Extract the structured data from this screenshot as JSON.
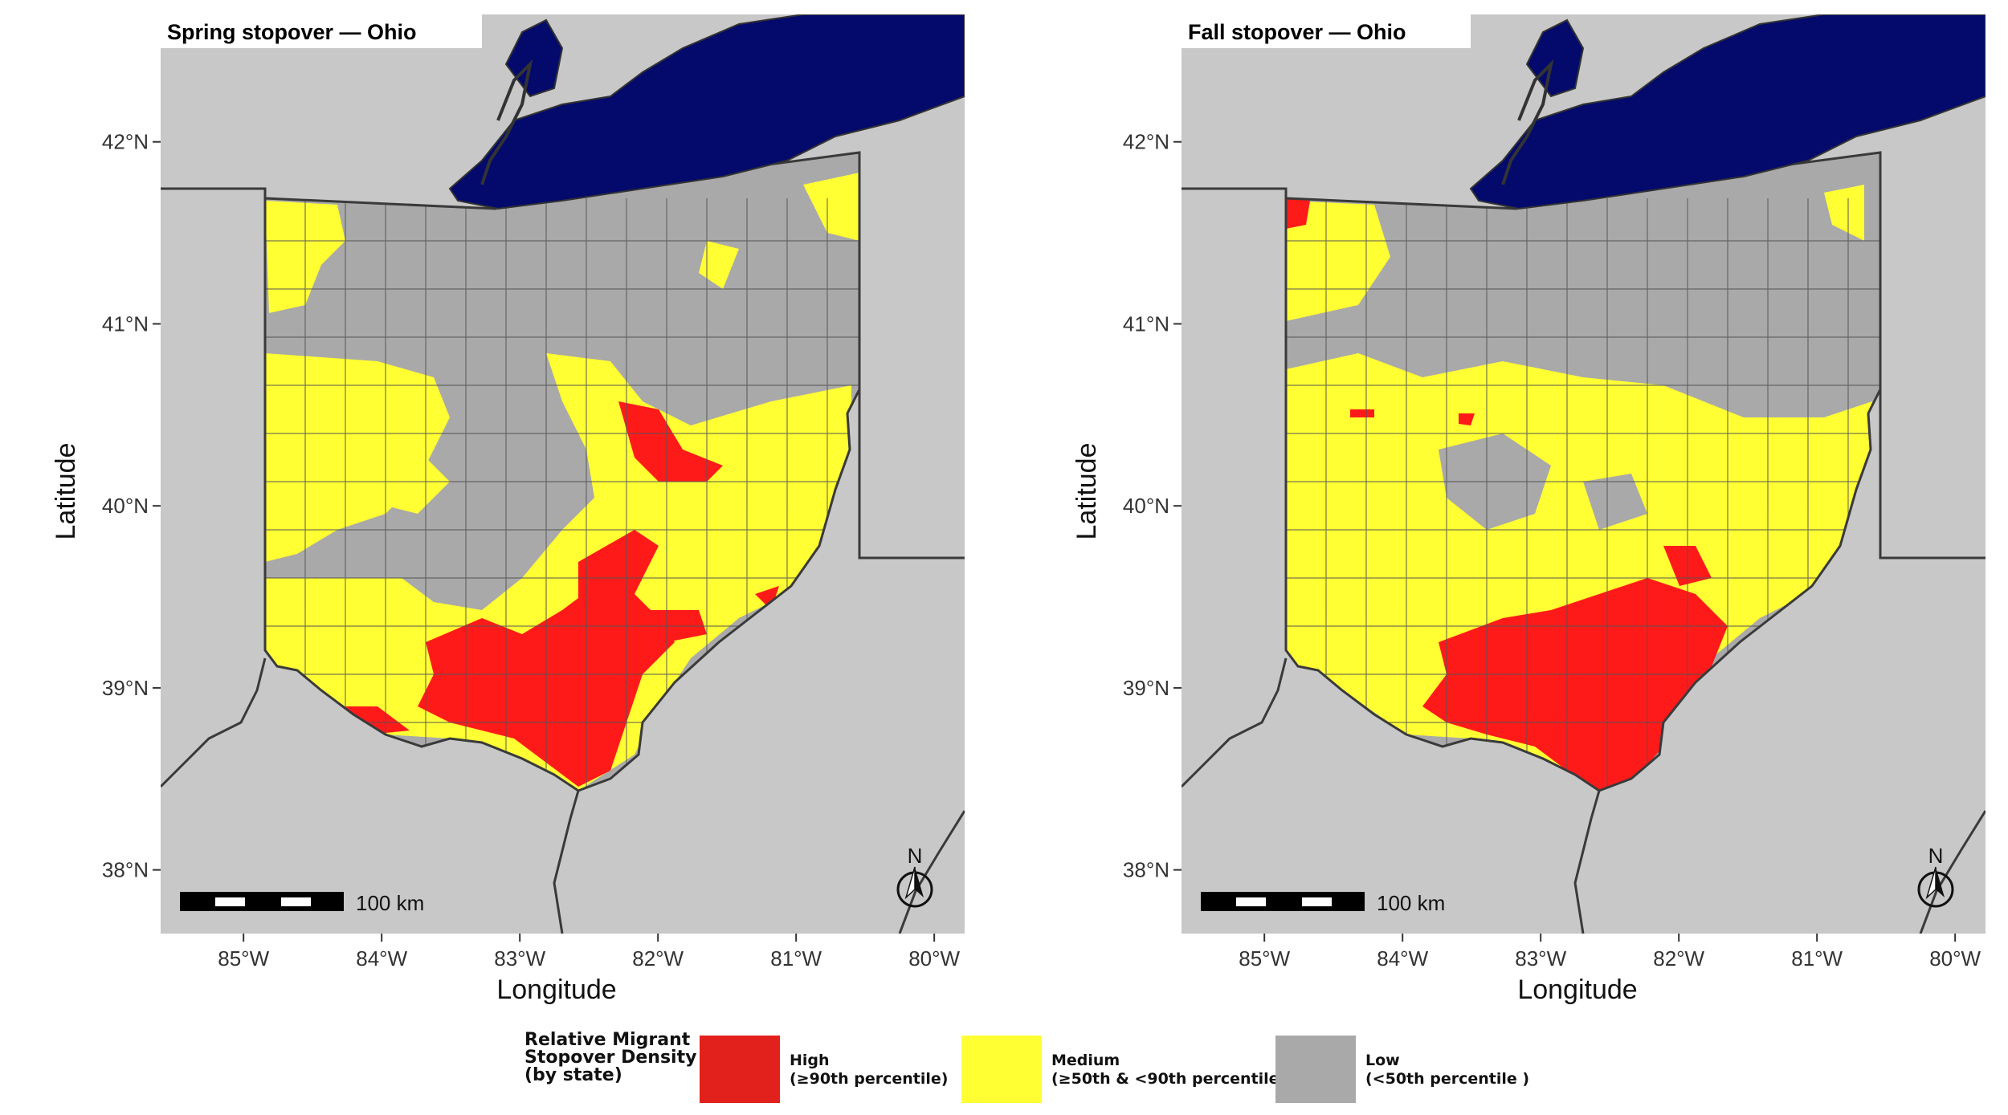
{
  "panels": [
    {
      "title": "Spring stopover — Ohio",
      "ylabel": "Latitude",
      "xlabel": "Longitude",
      "scalebar_label": "100 km",
      "north_label": "N"
    },
    {
      "title": "Fall stopover — Ohio",
      "ylabel": "Latitude",
      "xlabel": "Longitude",
      "scalebar_label": "100 km",
      "north_label": "N"
    }
  ],
  "axes": {
    "lat_ticks": [
      "42°N",
      "41°N",
      "40°N",
      "39°N",
      "38°N"
    ],
    "lon_ticks": [
      "85°W",
      "84°W",
      "83°W",
      "82°W",
      "81°W",
      "80°W"
    ],
    "lat_values": [
      42,
      41,
      40,
      39,
      38
    ],
    "lon_values": [
      -85,
      -84,
      -83,
      -82,
      -81,
      -80
    ],
    "lat_range": [
      37.65,
      42.7
    ],
    "lon_range": [
      -85.6,
      -79.78
    ]
  },
  "legend": {
    "title_lines": [
      "Relative Migrant",
      "Stopover Density",
      "(by state)"
    ],
    "items": [
      {
        "lines": [
          "High",
          "(≥90th percentile)"
        ],
        "color": "#e3211c"
      },
      {
        "lines": [
          "Medium",
          "(≥50th & <90th percentile)"
        ],
        "color": "#ffff33"
      },
      {
        "lines": [
          "Low",
          "(<50th percentile )"
        ],
        "color": "#a9a9a9"
      }
    ]
  },
  "colors": {
    "background": "#c8c8c8",
    "lake": "#030a6c",
    "ohio_low": "#a9a9a9",
    "medium": "#ffff33",
    "high": "#ff1a1a",
    "border": "#3a3a3a"
  }
}
